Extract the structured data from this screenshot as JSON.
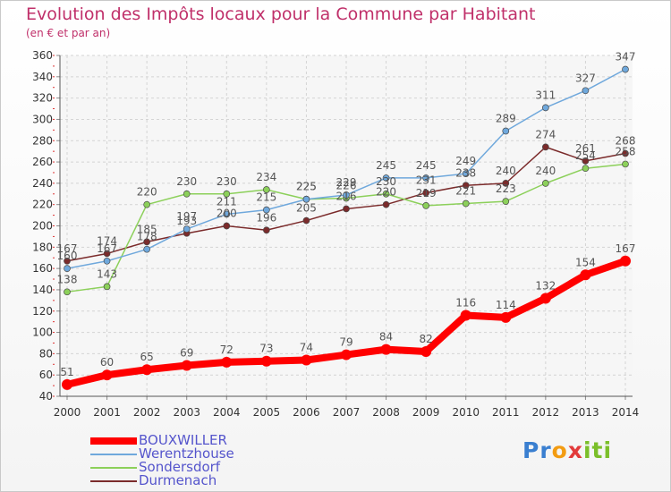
{
  "header": {
    "title": "Evolution des Impôts locaux pour la Commune par Habitant",
    "subtitle": "(en € et par an)"
  },
  "logo": {
    "text": "Proxiti"
  },
  "chart_data": {
    "type": "line",
    "x": [
      2000,
      2001,
      2002,
      2003,
      2004,
      2005,
      2006,
      2007,
      2008,
      2009,
      2010,
      2011,
      2012,
      2013,
      2014
    ],
    "ylim": [
      40,
      360
    ],
    "ytick_step": 20,
    "grid": true,
    "legend_position": "bottom-left",
    "series": [
      {
        "name": "BOUXWILLER",
        "color": "#ff0000",
        "values": [
          51,
          60,
          65,
          69,
          72,
          73,
          74,
          79,
          84,
          82,
          116,
          114,
          132,
          154,
          167
        ]
      },
      {
        "name": "Werentzhouse",
        "color": "#6fa8dc",
        "values": [
          160,
          167,
          178,
          197,
          211,
          215,
          225,
          229,
          245,
          245,
          249,
          289,
          311,
          327,
          347
        ]
      },
      {
        "name": "Sondersdorf",
        "color": "#8cd05a",
        "values": [
          138,
          143,
          220,
          230,
          230,
          234,
          225,
          226,
          230,
          219,
          221,
          223,
          240,
          254,
          258
        ]
      },
      {
        "name": "Durmenach",
        "color": "#7b2b2b",
        "values": [
          167,
          174,
          185,
          193,
          200,
          196,
          205,
          216,
          220,
          231,
          238,
          240,
          274,
          261,
          268
        ]
      }
    ]
  }
}
